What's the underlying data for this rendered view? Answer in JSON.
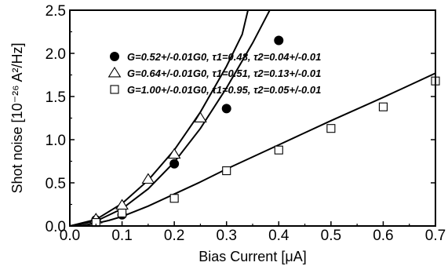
{
  "chart_data": {
    "type": "scatter",
    "xlabel": "Bias Current [μA]",
    "ylabel": "Shot noise [10⁻²⁶ A²/Hz]",
    "xlim": [
      0.0,
      0.7
    ],
    "ylim": [
      0.0,
      2.5
    ],
    "x_ticks": [
      "0.0",
      "0.1",
      "0.2",
      "0.3",
      "0.4",
      "0.5",
      "0.6",
      "0.7"
    ],
    "y_ticks": [
      "0.0",
      "0.5",
      "1.0",
      "1.5",
      "2.0",
      "2.5"
    ],
    "grid": false,
    "legend_position": "top-center",
    "series": [
      {
        "name": "G=0.52+/-0.01G0, τ1=0.48, τ2=0.04+/-0.01",
        "marker": "filled-circle",
        "color": "#000000",
        "x": [
          0.05,
          0.1,
          0.2,
          0.3,
          0.4
        ],
        "y": [
          0.07,
          0.13,
          0.72,
          1.36,
          2.15
        ],
        "fit": {
          "x": [
            0.0,
            0.05,
            0.1,
            0.15,
            0.2,
            0.25,
            0.3,
            0.35,
            0.4,
            0.417
          ],
          "y": [
            0.0,
            0.055,
            0.2,
            0.43,
            0.74,
            1.13,
            1.6,
            2.12,
            2.7,
            2.9
          ]
        }
      },
      {
        "name": "G=0.64+/-0.01G0, τ1=0.51, τ2=0.13+/-0.01",
        "marker": "open-triangle",
        "color": "#000000",
        "x": [
          0.05,
          0.1,
          0.15,
          0.2,
          0.25
        ],
        "y": [
          0.08,
          0.24,
          0.54,
          0.83,
          1.25
        ],
        "fit": {
          "x": [
            0.0,
            0.05,
            0.1,
            0.15,
            0.2,
            0.25,
            0.3,
            0.33,
            0.345
          ],
          "y": [
            0.0,
            0.075,
            0.26,
            0.53,
            0.88,
            1.32,
            1.85,
            2.22,
            2.6
          ]
        }
      },
      {
        "name": "G=1.00+/-0.01G0, τ1=0.95, τ2=0.05+/-0.01",
        "marker": "open-square",
        "color": "#000000",
        "x": [
          0.05,
          0.1,
          0.2,
          0.3,
          0.4,
          0.5,
          0.6,
          0.7
        ],
        "y": [
          0.04,
          0.15,
          0.32,
          0.64,
          0.88,
          1.13,
          1.38,
          1.68
        ],
        "fit": {
          "x": [
            0.0,
            0.025,
            0.05,
            0.075,
            0.1,
            0.15,
            0.2,
            0.25,
            0.3,
            0.4,
            0.5,
            0.6,
            0.7
          ],
          "y": [
            0.0,
            0.008,
            0.03,
            0.065,
            0.11,
            0.23,
            0.37,
            0.51,
            0.66,
            0.94,
            1.22,
            1.49,
            1.77
          ]
        }
      }
    ]
  }
}
